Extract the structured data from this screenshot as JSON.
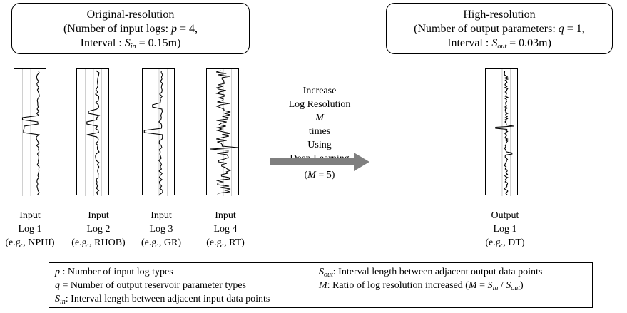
{
  "original_box": {
    "title": "Original-resolution",
    "line2_prefix": "(Number of input logs: ",
    "p_symbol": "p",
    "line2_suffix": " = 4,",
    "line3_prefix": "Interval : ",
    "s_symbol": "S",
    "s_sub": "in",
    "line3_suffix": " = 0.15m)"
  },
  "high_box": {
    "title": "High-resolution",
    "line2_prefix": "(Number of output parameters: ",
    "q_symbol": "q",
    "line2_suffix": " = 1,",
    "line3_prefix": "Interval : ",
    "s_symbol": "S",
    "s_sub": "out",
    "line3_suffix": " = 0.03m)"
  },
  "input_logs": [
    {
      "line1": "Input",
      "line2": "Log 1",
      "line3": "(e.g., NPHI)"
    },
    {
      "line1": "Input",
      "line2": "Log 2",
      "line3": "(e.g., RHOB)"
    },
    {
      "line1": "Input",
      "line2": "Log 3",
      "line3": "(e.g., GR)"
    },
    {
      "line1": "Input",
      "line2": "Log 4",
      "line3": "(e.g., RT)"
    }
  ],
  "output_log": {
    "line1": "Output",
    "line2": "Log 1",
    "line3": "(e.g., DT)"
  },
  "arrow_text": {
    "line1": "Increase",
    "line2": "Log Resolution",
    "m_symbol": "M",
    "line3_suffix": " times",
    "line4": "Using",
    "line5": "Deep Learning",
    "m_eq_prefix": "(",
    "m_eq_suffix": " = 5)"
  },
  "legend": {
    "p_symbol": "p",
    "p_desc": " : Number of input log types",
    "q_symbol": "q",
    "q_desc": " = Number of output reservoir parameter types",
    "sin_symbol": "S",
    "sin_sub": "in",
    "sin_desc": ": Interval length between adjacent input data points",
    "sout_symbol": "S",
    "sout_sub": "out",
    "sout_desc": ": Interval length between adjacent output data points",
    "m_symbol": "M",
    "m_desc": ": Ratio of log resolution increased (",
    "m_eq_mid": " = ",
    "m_eq_s1": "S",
    "m_eq_s1_sub": "in",
    "m_eq_slash": " / ",
    "m_eq_s2": "S",
    "m_eq_s2_sub": "out",
    "m_eq_close": ")"
  },
  "colors": {
    "trace": "#000000",
    "grid": "#b0b0b0",
    "arrow": "#7f7f7f"
  }
}
